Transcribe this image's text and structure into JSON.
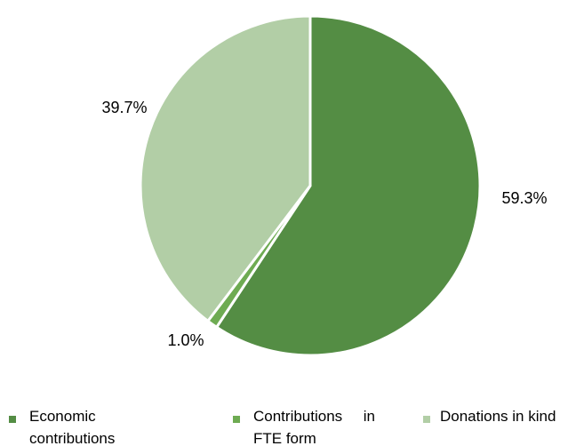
{
  "chart_data": {
    "type": "pie",
    "title": "",
    "slices": [
      {
        "label": "Economic contributions",
        "value": 59.3,
        "display": "59.3%",
        "color": "#548D44"
      },
      {
        "label": "Contributions in FTE form",
        "value": 1.0,
        "display": "1.0%",
        "color": "#6EAB52"
      },
      {
        "label": "Donations in kind",
        "value": 39.7,
        "display": "39.7%",
        "color": "#B2CEA6"
      }
    ],
    "legend": {
      "position": "bottom",
      "entries": [
        {
          "lines": [
            "Economic",
            "contributions"
          ],
          "color": "#548D44"
        },
        {
          "lines": [
            "Contributions     in",
            "FTE form"
          ],
          "color": "#6EAB52"
        },
        {
          "lines": [
            "Donations in kind"
          ],
          "color": "#B2CEA6"
        }
      ]
    }
  }
}
